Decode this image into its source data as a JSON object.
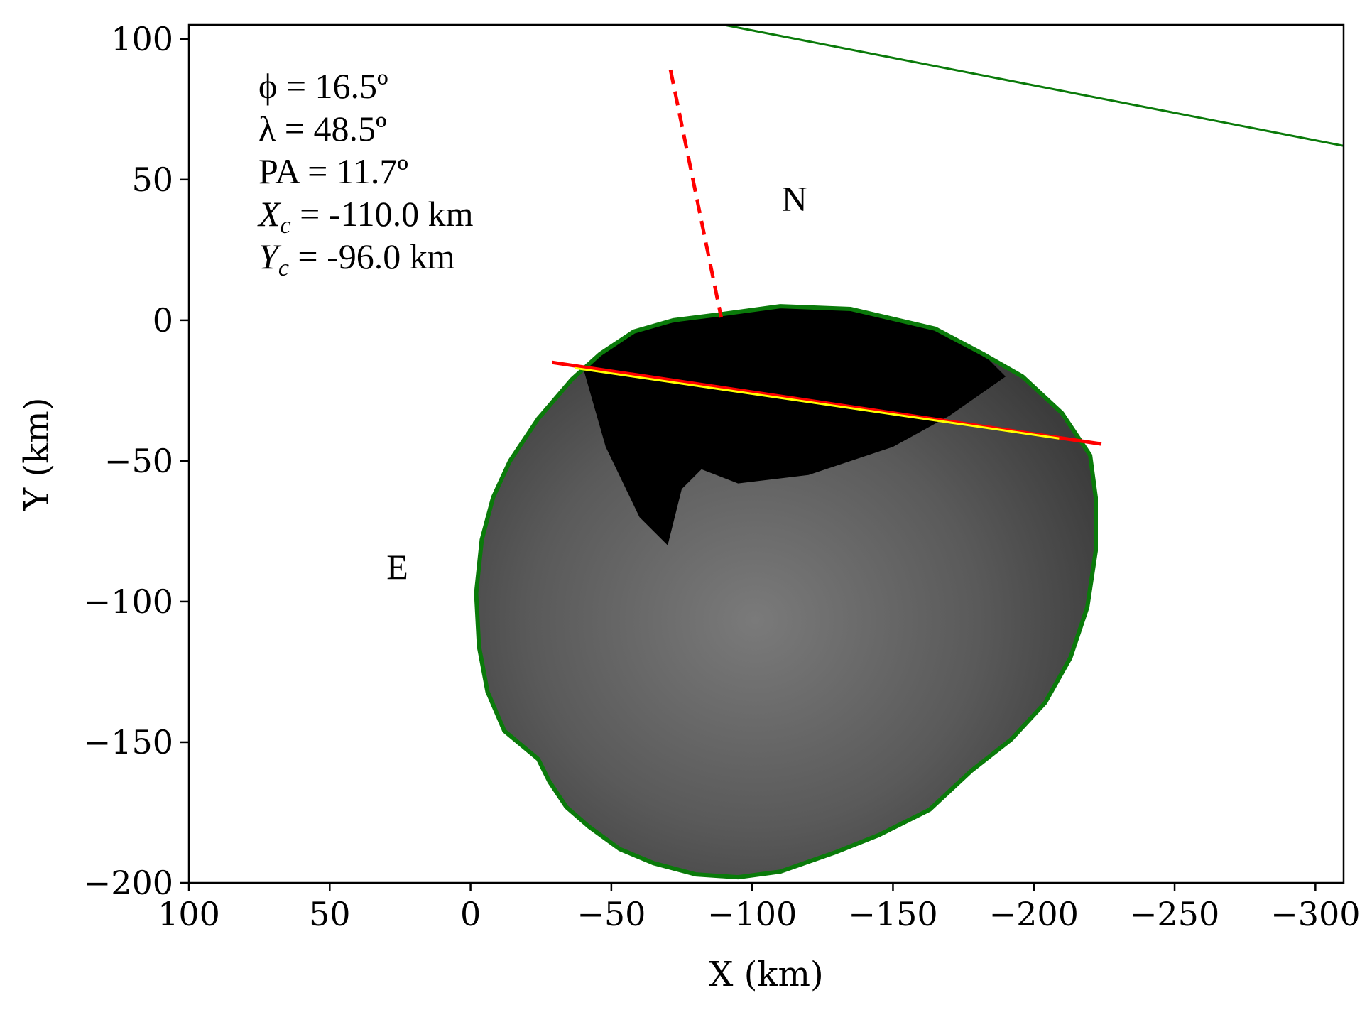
{
  "chart_data": {
    "type": "scatter",
    "xlabel": "X (km)",
    "ylabel": "Y (km)",
    "xlim": [
      100,
      -310
    ],
    "ylim": [
      -200,
      105
    ],
    "xticks": [
      100,
      50,
      0,
      -50,
      -100,
      -150,
      -200,
      -250,
      -300
    ],
    "yticks": [
      100,
      50,
      0,
      -50,
      -100,
      -150,
      -200
    ],
    "xtick_labels": [
      "100",
      "50",
      "0",
      "−50",
      "−100",
      "−150",
      "−200",
      "−250",
      "−300"
    ],
    "ytick_labels": [
      "100",
      "50",
      "0",
      "−50",
      "−100",
      "−150",
      "−200"
    ],
    "grid": false,
    "annotations": {
      "phi": "ϕ = 16.5º",
      "lambda": "λ = 48.5º",
      "pa": "PA = 11.7º",
      "xc_sym": "X",
      "xc_sub": "c",
      "xc_val": " = -110.0 km",
      "yc_sym": "Y",
      "yc_sub": "c",
      "yc_val": " = -96.0 km"
    },
    "direction_labels": [
      {
        "text": "N",
        "x": -115,
        "y": 39
      },
      {
        "text": "E",
        "x": 26,
        "y": -92
      }
    ],
    "lines": [
      {
        "name": "chord-upper",
        "color": "#0a7a0a",
        "style": "solid",
        "x": [
          -90,
          -310
        ],
        "y": [
          105,
          62
        ]
      },
      {
        "name": "pole-axis",
        "color": "#ff0000",
        "style": "dashed",
        "x": [
          -71,
          -89
        ],
        "y": [
          89,
          1
        ]
      },
      {
        "name": "red-chord",
        "color": "#ff0000",
        "style": "solid",
        "x": [
          -29,
          -224
        ],
        "y": [
          -15,
          -44
        ]
      },
      {
        "name": "yellow-chord",
        "color": "#ffff00",
        "style": "solid",
        "x": [
          -37,
          -209
        ],
        "y": [
          -17,
          -42
        ]
      }
    ],
    "outline": {
      "name": "asteroid-limb",
      "color": "#0a7a0a",
      "fill": "#6a6a6a",
      "x": [
        -88,
        -110,
        -135,
        -165,
        -182,
        -196,
        -210,
        -220,
        -222,
        -222,
        -219,
        -213,
        -204,
        -192,
        -178,
        -163,
        -145,
        -130,
        -110,
        -95,
        -80,
        -65,
        -53,
        -42,
        -34,
        -28,
        -24,
        -12,
        -6,
        -3,
        -2,
        -4,
        -8,
        -14,
        -24,
        -36,
        -46,
        -58,
        -72,
        -88
      ],
      "y": [
        2,
        5,
        4,
        -3,
        -12,
        -20,
        -33,
        -48,
        -63,
        -82,
        -102,
        -120,
        -136,
        -149,
        -160,
        -174,
        -183,
        -189,
        -196,
        -198,
        -197,
        -193,
        -188,
        -180,
        -173,
        -164,
        -156,
        -146,
        -132,
        -116,
        -97,
        -78,
        -63,
        -50,
        -35,
        -21,
        -12,
        -4,
        0,
        2
      ]
    },
    "dark_region": {
      "name": "shadow-region",
      "color": "#000000",
      "x": [
        -40,
        -60,
        -88,
        -110,
        -135,
        -165,
        -182,
        -190,
        -170,
        -150,
        -120,
        -95,
        -82,
        -75,
        -70,
        -60,
        -48,
        -40
      ],
      "y": [
        -17,
        -3,
        2,
        5,
        4,
        -3,
        -12,
        -20,
        -34,
        -45,
        -55,
        -58,
        -53,
        -60,
        -80,
        -70,
        -45,
        -17
      ]
    }
  }
}
